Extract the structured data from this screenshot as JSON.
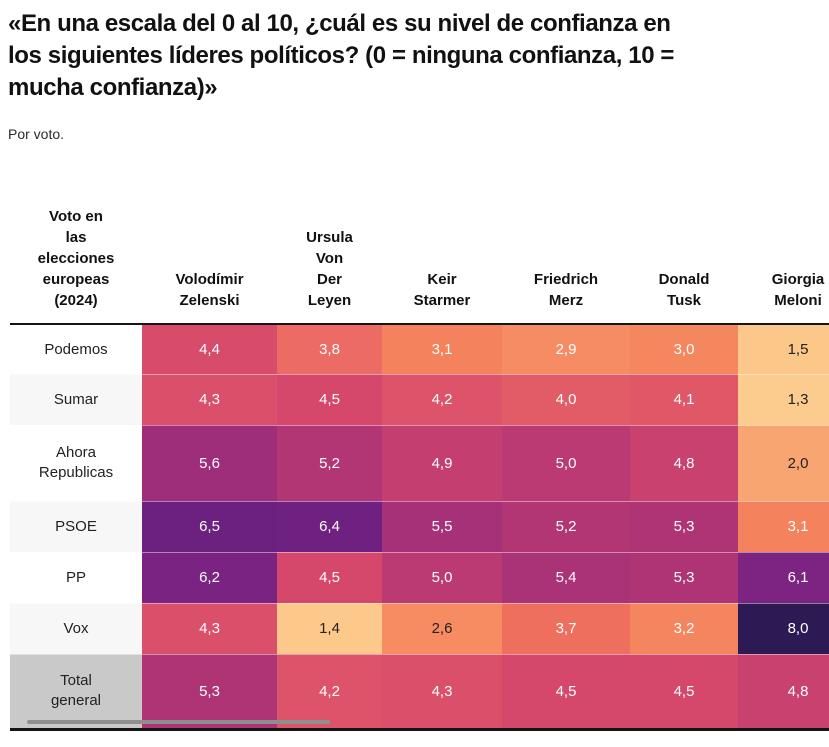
{
  "header": {
    "title": "«En una escala del 0 al 10, ¿cuál es su nivel de confianza en\nlos siguientes líderes políticos? (0 = ninguna confianza, 10 =\nmucha confianza)»",
    "subtitle": "Por voto."
  },
  "table": {
    "corner_label": "Voto en\nlas\nelecciones\neuropeas\n(2024)",
    "columns": [
      {
        "label": "Volodímir\nZelenski"
      },
      {
        "label": "Ursula\nVon\nDer\nLeyen"
      },
      {
        "label": "Keir\nStarmer"
      },
      {
        "label": "Friedrich\nMerz"
      },
      {
        "label": "Donald\nTusk"
      },
      {
        "label": "Giorgia\nMeloni"
      }
    ],
    "rows": [
      {
        "label": "Podemos",
        "label_bg": "#ffffff",
        "cells": [
          {
            "value": "4,4",
            "bg": "#d74b6b",
            "fg": "#ffffff"
          },
          {
            "value": "3,8",
            "bg": "#ec6b64",
            "fg": "#ffffff"
          },
          {
            "value": "3,1",
            "bg": "#f4835d",
            "fg": "#ffffff"
          },
          {
            "value": "2,9",
            "bg": "#f68c63",
            "fg": "#ffffff"
          },
          {
            "value": "3,0",
            "bg": "#f5875f",
            "fg": "#ffffff"
          },
          {
            "value": "1,5",
            "bg": "#fbc88a",
            "fg": "#222222"
          }
        ]
      },
      {
        "label": "Sumar",
        "label_bg": "#f7f7f7",
        "cells": [
          {
            "value": "4,3",
            "bg": "#da4f6a",
            "fg": "#ffffff"
          },
          {
            "value": "4,5",
            "bg": "#d5486c",
            "fg": "#ffffff"
          },
          {
            "value": "4,2",
            "bg": "#dd5369",
            "fg": "#ffffff"
          },
          {
            "value": "4,0",
            "bg": "#e25c68",
            "fg": "#ffffff"
          },
          {
            "value": "4,1",
            "bg": "#e05867",
            "fg": "#ffffff"
          },
          {
            "value": "1,3",
            "bg": "#fccb8e",
            "fg": "#222222"
          }
        ]
      },
      {
        "label": "Ahora\nRepublicas",
        "label_bg": "#ffffff",
        "cells": [
          {
            "value": "5,6",
            "bg": "#9f2e7a",
            "fg": "#ffffff"
          },
          {
            "value": "5,2",
            "bg": "#b23674",
            "fg": "#ffffff"
          },
          {
            "value": "4,9",
            "bg": "#c43f70",
            "fg": "#ffffff"
          },
          {
            "value": "5,0",
            "bg": "#bb3a73",
            "fg": "#ffffff"
          },
          {
            "value": "4,8",
            "bg": "#c8416f",
            "fg": "#ffffff"
          },
          {
            "value": "2,0",
            "bg": "#f9a571",
            "fg": "#222222"
          }
        ]
      },
      {
        "label": "PSOE",
        "label_bg": "#f7f7f7",
        "cells": [
          {
            "value": "6,5",
            "bg": "#6c2080",
            "fg": "#ffffff"
          },
          {
            "value": "6,4",
            "bg": "#6f2181",
            "fg": "#ffffff"
          },
          {
            "value": "5,5",
            "bg": "#a63178",
            "fg": "#ffffff"
          },
          {
            "value": "5,2",
            "bg": "#b23674",
            "fg": "#ffffff"
          },
          {
            "value": "5,3",
            "bg": "#ae3475",
            "fg": "#ffffff"
          },
          {
            "value": "3,1",
            "bg": "#f4835d",
            "fg": "#ffffff"
          }
        ]
      },
      {
        "label": "PP",
        "label_bg": "#ffffff",
        "cells": [
          {
            "value": "6,2",
            "bg": "#7a2383",
            "fg": "#ffffff"
          },
          {
            "value": "4,5",
            "bg": "#d5486c",
            "fg": "#ffffff"
          },
          {
            "value": "5,0",
            "bg": "#bb3a73",
            "fg": "#ffffff"
          },
          {
            "value": "5,4",
            "bg": "#aa3277",
            "fg": "#ffffff"
          },
          {
            "value": "5,3",
            "bg": "#ae3475",
            "fg": "#ffffff"
          },
          {
            "value": "6,1",
            "bg": "#7d2482",
            "fg": "#ffffff"
          }
        ]
      },
      {
        "label": "Vox",
        "label_bg": "#f7f7f7",
        "cells": [
          {
            "value": "4,3",
            "bg": "#da4f6a",
            "fg": "#ffffff"
          },
          {
            "value": "1,4",
            "bg": "#fcc98b",
            "fg": "#222222"
          },
          {
            "value": "2,6",
            "bg": "#f78b61",
            "fg": "#222222"
          },
          {
            "value": "3,7",
            "bg": "#ee6f5e",
            "fg": "#ffffff"
          },
          {
            "value": "3,2",
            "bg": "#f3865f",
            "fg": "#ffffff"
          },
          {
            "value": "8,0",
            "bg": "#2c1a55",
            "fg": "#ffffff"
          }
        ]
      },
      {
        "label": "Total\ngeneral",
        "label_bg": "#c9c9c9",
        "cells": [
          {
            "value": "5,3",
            "bg": "#ae3475",
            "fg": "#ffffff"
          },
          {
            "value": "4,2",
            "bg": "#dd5369",
            "fg": "#ffffff"
          },
          {
            "value": "4,3",
            "bg": "#da4f6a",
            "fg": "#ffffff"
          },
          {
            "value": "4,5",
            "bg": "#d5486c",
            "fg": "#ffffff"
          },
          {
            "value": "4,5",
            "bg": "#d5486c",
            "fg": "#ffffff"
          },
          {
            "value": "4,8",
            "bg": "#c8416f",
            "fg": "#ffffff"
          }
        ]
      }
    ]
  },
  "chart_data": {
    "type": "heatmap",
    "title": "«En una escala del 0 al 10, ¿cuál es su nivel de confianza en los siguientes líderes políticos? (0 = ninguna confianza, 10 = mucha confianza)»",
    "subtitle": "Por voto.",
    "row_header": "Voto en las elecciones europeas (2024)",
    "columns": [
      "Volodímir Zelenski",
      "Ursula Von Der Leyen",
      "Keir Starmer",
      "Friedrich Merz",
      "Donald Tusk",
      "Giorgia Meloni"
    ],
    "rows": [
      "Podemos",
      "Sumar",
      "Ahora Republicas",
      "PSOE",
      "PP",
      "Vox",
      "Total general"
    ],
    "values": [
      [
        4.4,
        3.8,
        3.1,
        2.9,
        3.0,
        1.5
      ],
      [
        4.3,
        4.5,
        4.2,
        4.0,
        4.1,
        1.3
      ],
      [
        5.6,
        5.2,
        4.9,
        5.0,
        4.8,
        2.0
      ],
      [
        6.5,
        6.4,
        5.5,
        5.2,
        5.3,
        3.1
      ],
      [
        6.2,
        4.5,
        5.0,
        5.4,
        5.3,
        6.1
      ],
      [
        4.3,
        1.4,
        2.6,
        3.7,
        3.2,
        8.0
      ],
      [
        5.3,
        4.2,
        4.3,
        4.5,
        4.5,
        4.8
      ]
    ],
    "value_range": [
      0,
      10
    ],
    "decimal_separator": ",",
    "color_scale_low": "#fbc88a",
    "color_scale_mid": "#d5486c",
    "color_scale_high": "#2c1a55",
    "legend_position": "none",
    "grid": false
  }
}
